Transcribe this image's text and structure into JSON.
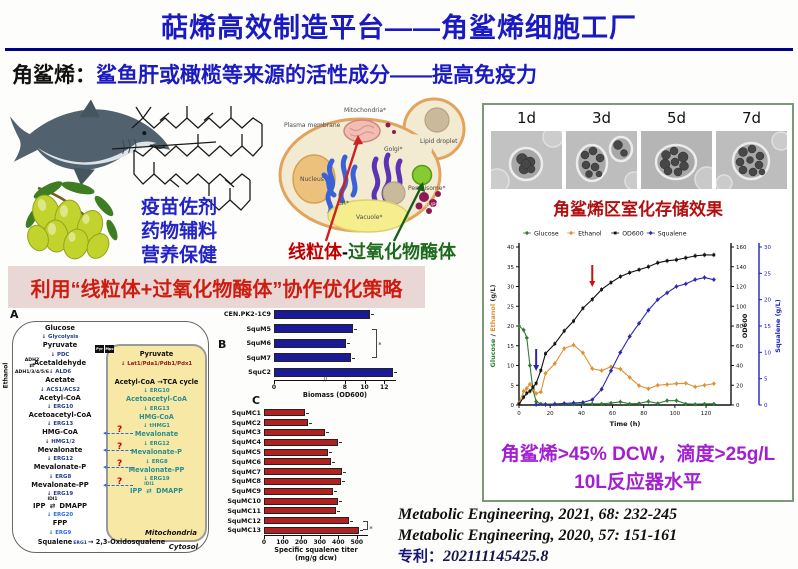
{
  "header": {
    "title": "萜烯高效制造平台——角鲨烯细胞工厂"
  },
  "intro": {
    "term": "角鲨烯：",
    "desc": "鲨鱼肝或橄榄等来源的活性成分——提高免疫力"
  },
  "benefits": [
    "疫苗佐剂",
    "药物辅料",
    "营养保健"
  ],
  "cell": {
    "labels": {
      "plasma": "Plasma membrane",
      "mitochondria": "Mitochondria*",
      "lipid": "Lipid droplet",
      "nucleus": "Nucleus",
      "golgi": "Golgi*",
      "er": "ER*",
      "peroxisome": "Peroxisome*",
      "vacuole": "Vacuole*",
      "lgpb": "LG/PB"
    }
  },
  "org_caption": {
    "red": "线粒体",
    "dash": "-",
    "green": "过氧化物酶体"
  },
  "banner": {
    "text": "利用“线粒体+过氧化物酶体”协作优化策略"
  },
  "pathway": {
    "panel_label": "A",
    "cytosol_label": "Cytosol",
    "mito_label": "Mitochondria",
    "ethanol_label": "Ethanol",
    "adh_top": "ADH2",
    "adh_bottom": "ADH1/3/4/5/6",
    "transporters": [
      "Pyr",
      "Mpc"
    ],
    "question": "?",
    "cytosol_rows": [
      {
        "t": "m",
        "s": "Glucose"
      },
      {
        "t": "e",
        "s": "Glycolysis"
      },
      {
        "t": "m",
        "s": "Pyruvate"
      },
      {
        "t": "e",
        "s": "PDC"
      },
      {
        "t": "m",
        "s": "Acetaldehyde"
      },
      {
        "t": "e",
        "s": "ALD6"
      },
      {
        "t": "m",
        "s": "Acetate"
      },
      {
        "t": "e",
        "s": "ACS1/ACS2"
      },
      {
        "t": "m",
        "s": "Acetyl-CoA"
      },
      {
        "t": "e",
        "s": "ERG10"
      },
      {
        "t": "m",
        "s": "Acetoacetyl-CoA"
      },
      {
        "t": "e",
        "s": "ERG13"
      },
      {
        "t": "m",
        "s": "HMG-CoA",
        "q": true
      },
      {
        "t": "e",
        "s": "HMG1/2"
      },
      {
        "t": "m",
        "s": "Mevalonate",
        "q": true
      },
      {
        "t": "e",
        "s": "ERG12"
      },
      {
        "t": "m",
        "s": "Mevalonate-P",
        "q": true
      },
      {
        "t": "e",
        "s": "ERG8"
      },
      {
        "t": "m",
        "s": "Mevalonate-PP",
        "q": true
      },
      {
        "t": "e",
        "s": "ERG19"
      },
      {
        "t": "pair",
        "a": "IPP",
        "e": "IDI1",
        "b": "DMAPP"
      },
      {
        "t": "e",
        "s": "ERG20",
        "blue": true
      },
      {
        "t": "m",
        "s": "FPP"
      },
      {
        "t": "e",
        "s": "ERG9",
        "blue": true
      },
      {
        "t": "final",
        "a": "Squalene",
        "e": "ERG1",
        "b": "2,3-Oxidosqualene"
      }
    ],
    "mito_rows": [
      {
        "t": "m",
        "s": "Pyruvate",
        "black": true
      },
      {
        "t": "e",
        "s": "Lat1/Pda1/Pdb1/Pdx1",
        "maroon": true,
        "gap": 10
      },
      {
        "t": "tca",
        "a": "Acetyl-CoA",
        "b": "TCA cycle"
      },
      {
        "t": "e",
        "s": "ERG10"
      },
      {
        "t": "m",
        "s": "Acetoacetyl-CoA"
      },
      {
        "t": "e",
        "s": "ERG13"
      },
      {
        "t": "m",
        "s": "HMG-CoA"
      },
      {
        "t": "e",
        "s": "tHMG1"
      },
      {
        "t": "m",
        "s": "Mevalonate"
      },
      {
        "t": "e",
        "s": "ERG12"
      },
      {
        "t": "m",
        "s": "Mevalonate-P"
      },
      {
        "t": "e",
        "s": "ERG8"
      },
      {
        "t": "m",
        "s": "Mevalonate-PP"
      },
      {
        "t": "e",
        "s": "ERG19"
      },
      {
        "t": "pair",
        "a": "IPP",
        "e": "IDI1",
        "b": "DMAPP"
      }
    ]
  },
  "right_panel": {
    "days": [
      "1d",
      "3d",
      "5d",
      "7d"
    ],
    "caption": "角鲨烯区室化存储效果",
    "conclusion1": "角鲨烯>45% DCW，滴度>25g/L",
    "conclusion2": "10L反应器水平"
  },
  "references": {
    "line1": "Metabolic Engineering, 2021, 68: 232-245",
    "line2": "Metabolic Engineering, 2020, 57: 151-161",
    "patent_label": "专利：",
    "patent_number": "202111145425.8"
  },
  "chart_data": [
    {
      "id": "biomass_bar",
      "type": "bar",
      "orientation": "horizontal",
      "panel_label": "B",
      "categories": [
        "CEN.PK2-1C9",
        "SquM5",
        "SquM6",
        "SquM7",
        "SquC2"
      ],
      "values": [
        10.6,
        8.8,
        8.1,
        8.6,
        12.9
      ],
      "xlabel": "Biomass (OD600)",
      "xticks": [
        0,
        8,
        10,
        12
      ],
      "axis_break_at": 6,
      "xlim": [
        0,
        13.2
      ],
      "bar_color": "#1a1a96",
      "sig": "*"
    },
    {
      "id": "squalene_titer_bar",
      "type": "bar",
      "orientation": "horizontal",
      "panel_label": "C",
      "categories": [
        "SquMC1",
        "SquMC2",
        "SquMC3",
        "SquMC4",
        "SquMC5",
        "SquMC6",
        "SquMC7",
        "SquMC8",
        "SquMC9",
        "SquMC10",
        "SquMC11",
        "SquMC12",
        "SquMC13"
      ],
      "values": [
        220,
        235,
        330,
        400,
        345,
        360,
        420,
        415,
        370,
        400,
        390,
        455,
        510
      ],
      "xlabel": "Specific squalene titer (mg/g dcw)",
      "xticks": [
        0,
        100,
        200,
        300,
        400,
        500
      ],
      "xlim": [
        0,
        560
      ],
      "bar_color": "#b22020",
      "sig": "*"
    },
    {
      "id": "fermentation_line",
      "type": "line",
      "xlabel": "Time (h)",
      "xticks": [
        0,
        20,
        40,
        60,
        80,
        100,
        120
      ],
      "xlim": [
        0,
        136
      ],
      "axes": {
        "left": {
          "label_parts": [
            "Glucose",
            " / ",
            "Ethanol",
            " (g/L)"
          ],
          "part_colors": [
            "#2e7d32",
            "#333333",
            "#e09030",
            "#333333"
          ],
          "range": [
            0,
            40
          ],
          "ticks": [
            0,
            5,
            10,
            15,
            20,
            25,
            30,
            35,
            40
          ]
        },
        "right1": {
          "label": "OD600",
          "range": [
            0,
            160
          ],
          "ticks": [
            0,
            20,
            40,
            60,
            80,
            100,
            120,
            140,
            160
          ],
          "color": "#111111"
        },
        "right2": {
          "label": "Squalene (g/L)",
          "range": [
            0,
            30
          ],
          "ticks": [
            0,
            5,
            10,
            15,
            20,
            25,
            30
          ],
          "color": "#2222bb"
        }
      },
      "series": [
        {
          "name": "Glucose",
          "color": "#2e7d32",
          "axis": "left",
          "marker": "diamond",
          "points": [
            [
              0,
              20
            ],
            [
              3,
              19
            ],
            [
              5,
              17
            ],
            [
              7,
              10
            ],
            [
              9,
              3.8
            ],
            [
              11,
              0.9
            ],
            [
              14,
              0.3
            ],
            [
              17,
              0.2
            ],
            [
              23,
              0.2
            ],
            [
              29,
              0.2
            ],
            [
              35,
              0.2
            ],
            [
              41,
              0.3
            ],
            [
              47,
              0.3
            ],
            [
              53,
              0.3
            ],
            [
              59,
              0.5
            ],
            [
              65,
              0.8
            ],
            [
              71,
              0.3
            ],
            [
              77,
              0.4
            ],
            [
              83,
              0.9
            ],
            [
              89,
              0.4
            ],
            [
              95,
              1.1
            ],
            [
              101,
              1.1
            ],
            [
              107,
              0.3
            ],
            [
              113,
              0.2
            ],
            [
              119,
              0.3
            ],
            [
              125,
              0.3
            ]
          ]
        },
        {
          "name": "Ethanol",
          "color": "#e09030",
          "axis": "left",
          "marker": "diamond",
          "points": [
            [
              0,
              0.5
            ],
            [
              3,
              3.5
            ],
            [
              5,
              4.2
            ],
            [
              7,
              5.3
            ],
            [
              9,
              4
            ],
            [
              11,
              2.9
            ],
            [
              14,
              3.3
            ],
            [
              17,
              8
            ],
            [
              23,
              10.5
            ],
            [
              29,
              14.3
            ],
            [
              35,
              15.2
            ],
            [
              41,
              13.2
            ],
            [
              47,
              9.2
            ],
            [
              53,
              8.7
            ],
            [
              59,
              9.7
            ],
            [
              65,
              9.1
            ],
            [
              71,
              7
            ],
            [
              77,
              4.9
            ],
            [
              83,
              4.1
            ],
            [
              89,
              5
            ],
            [
              95,
              5.2
            ],
            [
              101,
              5.4
            ],
            [
              107,
              5.5
            ],
            [
              113,
              4.6
            ],
            [
              119,
              5
            ],
            [
              125,
              5.4
            ]
          ]
        },
        {
          "name": "OD600",
          "color": "#111111",
          "axis": "right1",
          "marker": "square",
          "points": [
            [
              0,
              1
            ],
            [
              3,
              8
            ],
            [
              5,
              12
            ],
            [
              7,
              14
            ],
            [
              9,
              18
            ],
            [
              11,
              22
            ],
            [
              14,
              35
            ],
            [
              17,
              52
            ],
            [
              23,
              62
            ],
            [
              29,
              75
            ],
            [
              35,
              85
            ],
            [
              41,
              98
            ],
            [
              47,
              107
            ],
            [
              53,
              117
            ],
            [
              59,
              124
            ],
            [
              65,
              130
            ],
            [
              71,
              134
            ],
            [
              77,
              137
            ],
            [
              83,
              140
            ],
            [
              89,
              144
            ],
            [
              95,
              146
            ],
            [
              101,
              147
            ],
            [
              107,
              149
            ],
            [
              113,
              151
            ],
            [
              119,
              152
            ],
            [
              125,
              152
            ]
          ]
        },
        {
          "name": "Squalene",
          "color": "#2a2ab0",
          "axis": "right2",
          "marker": "diamond",
          "points": [
            [
              11,
              0.1
            ],
            [
              17,
              0.1
            ],
            [
              23,
              0.2
            ],
            [
              29,
              0.3
            ],
            [
              35,
              0.4
            ],
            [
              41,
              0.5
            ],
            [
              47,
              1
            ],
            [
              53,
              3
            ],
            [
              59,
              6.5
            ],
            [
              65,
              10
            ],
            [
              71,
              13
            ],
            [
              77,
              15.5
            ],
            [
              83,
              18
            ],
            [
              89,
              20
            ],
            [
              95,
              21.3
            ],
            [
              101,
              22.5
            ],
            [
              107,
              23
            ],
            [
              113,
              23.8
            ],
            [
              119,
              24.2
            ],
            [
              125,
              23.8
            ]
          ]
        }
      ]
    }
  ]
}
